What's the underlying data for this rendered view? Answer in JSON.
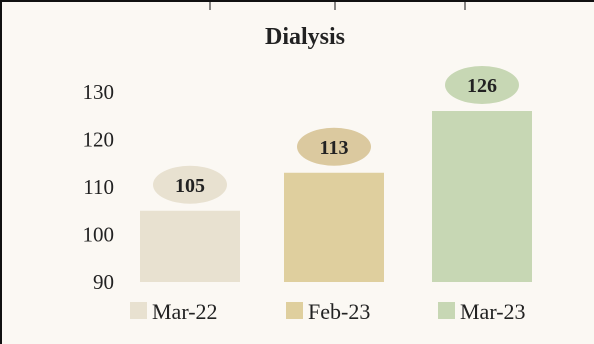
{
  "chart_data": {
    "type": "bar",
    "title": "Dialysis",
    "categories": [
      "Mar-22",
      "Feb-23",
      "Mar-23"
    ],
    "values": [
      105,
      113,
      126
    ],
    "ylim": [
      90,
      130
    ],
    "yticks": [
      "130",
      "120",
      "110",
      "100",
      "90"
    ],
    "series_colors": [
      "#e8e1d0",
      "#dfcf9e",
      "#c7d7b4"
    ],
    "label_bubble_colors": [
      "#e8e1d0",
      "#dbc99f",
      "#c7d7b4"
    ],
    "legend": {
      "position": "bottom",
      "entries": [
        "Mar-22",
        "Feb-23",
        "Mar-23"
      ]
    },
    "grid": false
  }
}
